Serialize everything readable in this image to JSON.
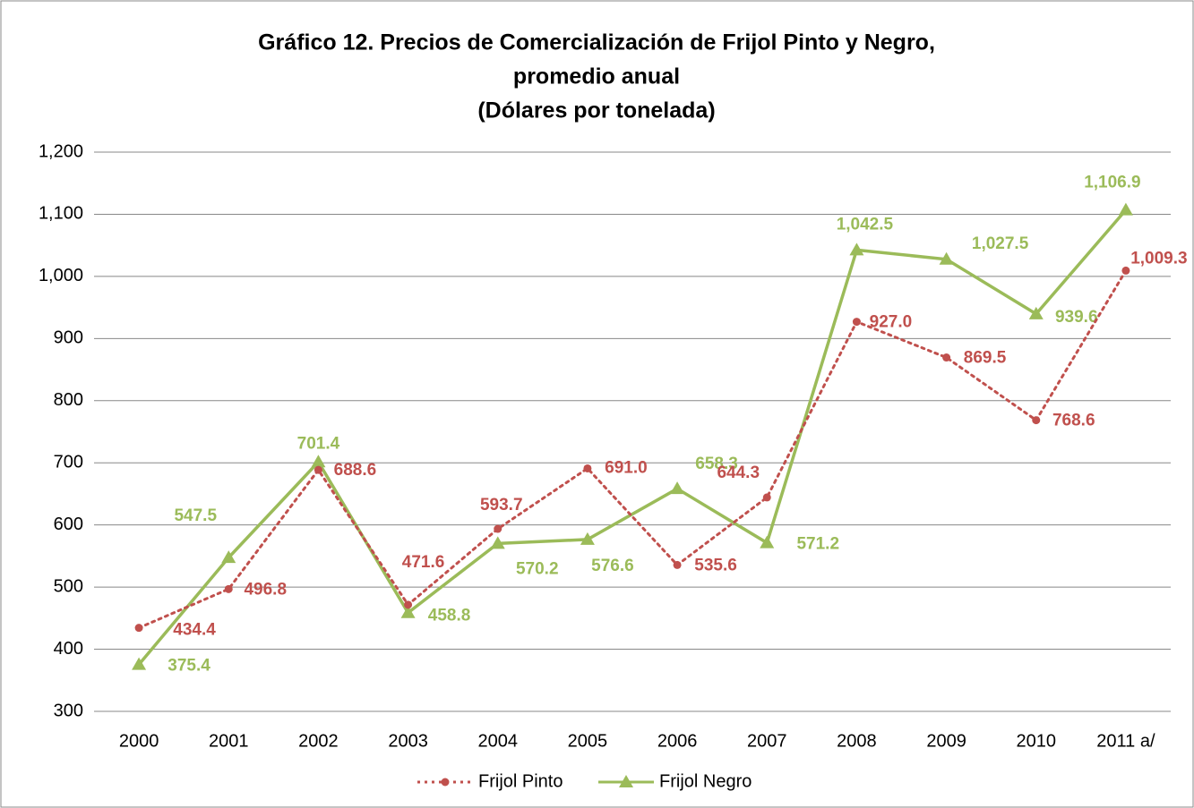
{
  "chart_data": {
    "type": "line",
    "title": [
      "Gráfico 12. Precios de Comercialización de Frijol Pinto y Negro,",
      "promedio anual",
      "(Dólares por tonelada)"
    ],
    "categories": [
      "2000",
      "2001",
      "2002",
      "2003",
      "2004",
      "2005",
      "2006",
      "2007",
      "2008",
      "2009",
      "2010",
      "2011 a/"
    ],
    "series": [
      {
        "name": "Frijol Pinto",
        "color": "#c0504d",
        "dash": true,
        "marker": "circle",
        "values": [
          434.4,
          496.8,
          688.6,
          471.6,
          593.7,
          691.0,
          535.6,
          644.3,
          927.0,
          869.5,
          768.6,
          1009.3
        ],
        "value_labels": [
          "434.4",
          "496.8",
          "688.6",
          "471.6",
          "593.7",
          "691.0",
          "535.6",
          "644.3",
          "927.0",
          "869.5",
          "768.6",
          "1,009.3"
        ]
      },
      {
        "name": "Frijol Negro",
        "color": "#9bbb59",
        "dash": false,
        "marker": "triangle",
        "values": [
          375.4,
          547.5,
          701.4,
          458.8,
          570.2,
          576.6,
          658.3,
          571.2,
          1042.5,
          1027.5,
          939.6,
          1106.9
        ],
        "value_labels": [
          "375.4",
          "547.5",
          "701.4",
          "458.8",
          "570.2",
          "576.6",
          "658.3",
          "571.2",
          "1,042.5",
          "1,027.5",
          "939.6",
          "1,106.9"
        ]
      }
    ],
    "ylim": [
      300,
      1200
    ],
    "yticks": [
      300,
      400,
      500,
      600,
      700,
      800,
      900,
      {
        "value": 1000,
        "label": "1,000"
      },
      {
        "value": 1100,
        "label": "1,100"
      },
      {
        "value": 1200,
        "label": "1,200"
      }
    ],
    "grid": true,
    "legend": "bottom"
  }
}
